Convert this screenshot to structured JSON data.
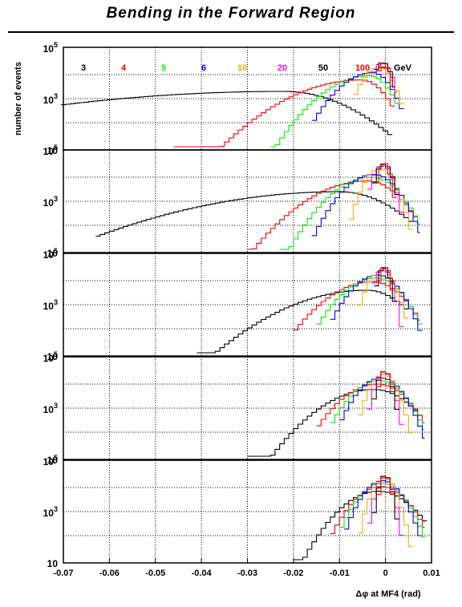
{
  "chart_data": {
    "type": "line",
    "title": "Bending in the Forward Region",
    "xlabel": "Δφ at MF4 (rad)",
    "ylabel": "number of events",
    "xlim": [
      -0.07,
      0.01
    ],
    "x_ticks": [
      "-0.07",
      "-0.06",
      "-0.05",
      "-0.04",
      "-0.03",
      "-0.02",
      "-0.01",
      "0",
      "0.01"
    ],
    "y_scale": "log",
    "ylim": [
      10,
      100000
    ],
    "y_tick_labels": [
      {
        "base": "10",
        "exp": "5"
      },
      {
        "base": "10",
        "exp": "3"
      },
      {
        "base": "10",
        "exp": ""
      }
    ],
    "grid": true,
    "legend_unit": "GeV",
    "series": [
      {
        "name": "3",
        "color": "#000000"
      },
      {
        "name": "4",
        "color": "#ff0000"
      },
      {
        "name": "5",
        "color": "#00ee00"
      },
      {
        "name": "6",
        "color": "#0000ff"
      },
      {
        "name": "10",
        "color": "#ffaa00"
      },
      {
        "name": "20",
        "color": "#ff00ff"
      },
      {
        "name": "50",
        "color": "#000000"
      },
      {
        "name": "100",
        "color": "#ff0000"
      }
    ],
    "panels": [
      {
        "curves": [
          {
            "series": "3",
            "peak_x": -0.022,
            "peak": 2000,
            "sigma_left": 0.03,
            "sigma_right": 0.008,
            "xmin": -0.0705,
            "xmax": 0.0015
          },
          {
            "series": "4",
            "peak_x": -0.0052,
            "peak": 6000,
            "sigma_left": 0.0085,
            "sigma_right": 0.003,
            "xmin": -0.046,
            "xmax": 0.002
          },
          {
            "series": "5",
            "peak_x": -0.0035,
            "peak": 9000,
            "sigma_left": 0.0055,
            "sigma_right": 0.0026,
            "xmin": -0.025,
            "xmax": 0.003
          },
          {
            "series": "6",
            "peak_x": -0.0028,
            "peak": 12000,
            "sigma_left": 0.0042,
            "sigma_right": 0.0024,
            "xmin": -0.016,
            "xmax": 0.004
          },
          {
            "series": "10",
            "peak_x": -0.0015,
            "peak": 20000,
            "sigma_left": 0.0022,
            "sigma_right": 0.0019,
            "xmin": -0.007,
            "xmax": 0.004
          },
          {
            "series": "20",
            "peak_x": -0.0008,
            "peak": 30000,
            "sigma_left": 0.0013,
            "sigma_right": 0.0014,
            "xmin": -0.003,
            "xmax": 0.0025
          },
          {
            "series": "50",
            "peak_x": -0.0006,
            "peak": 32000,
            "sigma_left": 0.0012,
            "sigma_right": 0.0012,
            "xmin": -0.0025,
            "xmax": 0.002
          },
          {
            "series": "100",
            "peak_x": -0.0004,
            "peak": 30000,
            "sigma_left": 0.0009,
            "sigma_right": 0.0009,
            "xmin": -0.002,
            "xmax": 0.0015
          }
        ]
      },
      {
        "curves": [
          {
            "series": "3",
            "peak_x": -0.01,
            "peak": 2500,
            "sigma_left": 0.018,
            "sigma_right": 0.0065,
            "xmin": -0.063,
            "xmax": 0.006
          },
          {
            "series": "4",
            "peak_x": -0.004,
            "peak": 7000,
            "sigma_left": 0.0068,
            "sigma_right": 0.004,
            "xmin": -0.03,
            "xmax": 0.007
          },
          {
            "series": "5",
            "peak_x": -0.003,
            "peak": 10000,
            "sigma_left": 0.0048,
            "sigma_right": 0.0035,
            "xmin": -0.023,
            "xmax": 0.0075
          },
          {
            "series": "6",
            "peak_x": -0.0025,
            "peak": 13000,
            "sigma_left": 0.0038,
            "sigma_right": 0.003,
            "xmin": -0.016,
            "xmax": 0.0075
          },
          {
            "series": "10",
            "peak_x": -0.0013,
            "peak": 22000,
            "sigma_left": 0.002,
            "sigma_right": 0.002,
            "xmin": -0.008,
            "xmax": 0.006
          },
          {
            "series": "20",
            "peak_x": -0.0007,
            "peak": 32000,
            "sigma_left": 0.0013,
            "sigma_right": 0.0014,
            "xmin": -0.004,
            "xmax": 0.004
          },
          {
            "series": "50",
            "peak_x": -0.0004,
            "peak": 36000,
            "sigma_left": 0.0011,
            "sigma_right": 0.0012,
            "xmin": -0.003,
            "xmax": 0.003
          },
          {
            "series": "100",
            "peak_x": -0.0003,
            "peak": 38000,
            "sigma_left": 0.0009,
            "sigma_right": 0.0009,
            "xmin": -0.0025,
            "xmax": 0.0025
          }
        ]
      },
      {
        "curves": [
          {
            "series": "3",
            "peak_x": -0.004,
            "peak": 4000,
            "sigma_left": 0.0095,
            "sigma_right": 0.0045,
            "xmin": -0.041,
            "xmax": 0.005
          },
          {
            "series": "4",
            "peak_x": -0.0028,
            "peak": 9000,
            "sigma_left": 0.0055,
            "sigma_right": 0.0038,
            "xmin": -0.02,
            "xmax": 0.0075
          },
          {
            "series": "5",
            "peak_x": -0.002,
            "peak": 13000,
            "sigma_left": 0.0042,
            "sigma_right": 0.0032,
            "xmin": -0.015,
            "xmax": 0.008
          },
          {
            "series": "6",
            "peak_x": -0.0016,
            "peak": 17000,
            "sigma_left": 0.0034,
            "sigma_right": 0.0028,
            "xmin": -0.012,
            "xmax": 0.008
          },
          {
            "series": "10",
            "peak_x": -0.0009,
            "peak": 25000,
            "sigma_left": 0.0018,
            "sigma_right": 0.0018,
            "xmin": -0.006,
            "xmax": 0.005
          },
          {
            "series": "20",
            "peak_x": -0.0005,
            "peak": 32000,
            "sigma_left": 0.0012,
            "sigma_right": 0.0012,
            "xmin": -0.003,
            "xmax": 0.004
          },
          {
            "series": "50",
            "peak_x": -0.0003,
            "peak": 36000,
            "sigma_left": 0.0009,
            "sigma_right": 0.0009,
            "xmin": -0.0025,
            "xmax": 0.0025
          },
          {
            "series": "100",
            "peak_x": -0.0002,
            "peak": 38000,
            "sigma_left": 0.0008,
            "sigma_right": 0.0008,
            "xmin": -0.002,
            "xmax": 0.002
          }
        ]
      },
      {
        "curves": [
          {
            "series": "3",
            "peak_x": -0.0025,
            "peak": 6000,
            "sigma_left": 0.0062,
            "sigma_right": 0.0045,
            "xmin": -0.03,
            "xmax": 0.008
          },
          {
            "series": "4",
            "peak_x": -0.0018,
            "peak": 10000,
            "sigma_left": 0.0045,
            "sigma_right": 0.0038,
            "xmin": -0.015,
            "xmax": 0.0085
          },
          {
            "series": "5",
            "peak_x": -0.0013,
            "peak": 14000,
            "sigma_left": 0.0036,
            "sigma_right": 0.0032,
            "xmin": -0.012,
            "xmax": 0.0085
          },
          {
            "series": "6",
            "peak_x": -0.001,
            "peak": 18000,
            "sigma_left": 0.003,
            "sigma_right": 0.0028,
            "xmin": -0.01,
            "xmax": 0.0085
          },
          {
            "series": "10",
            "peak_x": -0.0005,
            "peak": 25000,
            "sigma_left": 0.0018,
            "sigma_right": 0.0018,
            "xmin": -0.006,
            "xmax": 0.006
          },
          {
            "series": "20",
            "peak_x": -0.0003,
            "peak": 32000,
            "sigma_left": 0.0012,
            "sigma_right": 0.0012,
            "xmin": -0.004,
            "xmax": 0.004
          },
          {
            "series": "50",
            "peak_x": -0.0002,
            "peak": 34000,
            "sigma_left": 0.001,
            "sigma_right": 0.001,
            "xmin": -0.003,
            "xmax": 0.003
          },
          {
            "series": "100",
            "peak_x": -0.0001,
            "peak": 36000,
            "sigma_left": 0.0008,
            "sigma_right": 0.0008,
            "xmin": -0.002,
            "xmax": 0.002
          }
        ]
      },
      {
        "curves": [
          {
            "series": "3",
            "peak_x": -0.0015,
            "peak": 7000,
            "sigma_left": 0.0045,
            "sigma_right": 0.0042,
            "xmin": -0.02,
            "xmax": 0.009
          },
          {
            "series": "4",
            "peak_x": -0.001,
            "peak": 11000,
            "sigma_left": 0.0035,
            "sigma_right": 0.0034,
            "xmin": -0.012,
            "xmax": 0.0085
          },
          {
            "series": "5",
            "peak_x": -0.0008,
            "peak": 15000,
            "sigma_left": 0.003,
            "sigma_right": 0.0029,
            "xmin": -0.01,
            "xmax": 0.0085
          },
          {
            "series": "6",
            "peak_x": -0.0006,
            "peak": 19000,
            "sigma_left": 0.0026,
            "sigma_right": 0.0025,
            "xmin": -0.009,
            "xmax": 0.008
          },
          {
            "series": "10",
            "peak_x": -0.0003,
            "peak": 25000,
            "sigma_left": 0.0016,
            "sigma_right": 0.0016,
            "xmin": -0.006,
            "xmax": 0.006
          },
          {
            "series": "20",
            "peak_x": -0.0002,
            "peak": 30000,
            "sigma_left": 0.0011,
            "sigma_right": 0.0011,
            "xmin": -0.004,
            "xmax": 0.004
          },
          {
            "series": "50",
            "peak_x": -0.0001,
            "peak": 32000,
            "sigma_left": 0.0009,
            "sigma_right": 0.0009,
            "xmin": -0.003,
            "xmax": 0.003
          },
          {
            "series": "100",
            "peak_x": 0.0,
            "peak": 30000,
            "sigma_left": 0.0008,
            "sigma_right": 0.0008,
            "xmin": -0.002,
            "xmax": 0.002
          }
        ]
      }
    ]
  }
}
